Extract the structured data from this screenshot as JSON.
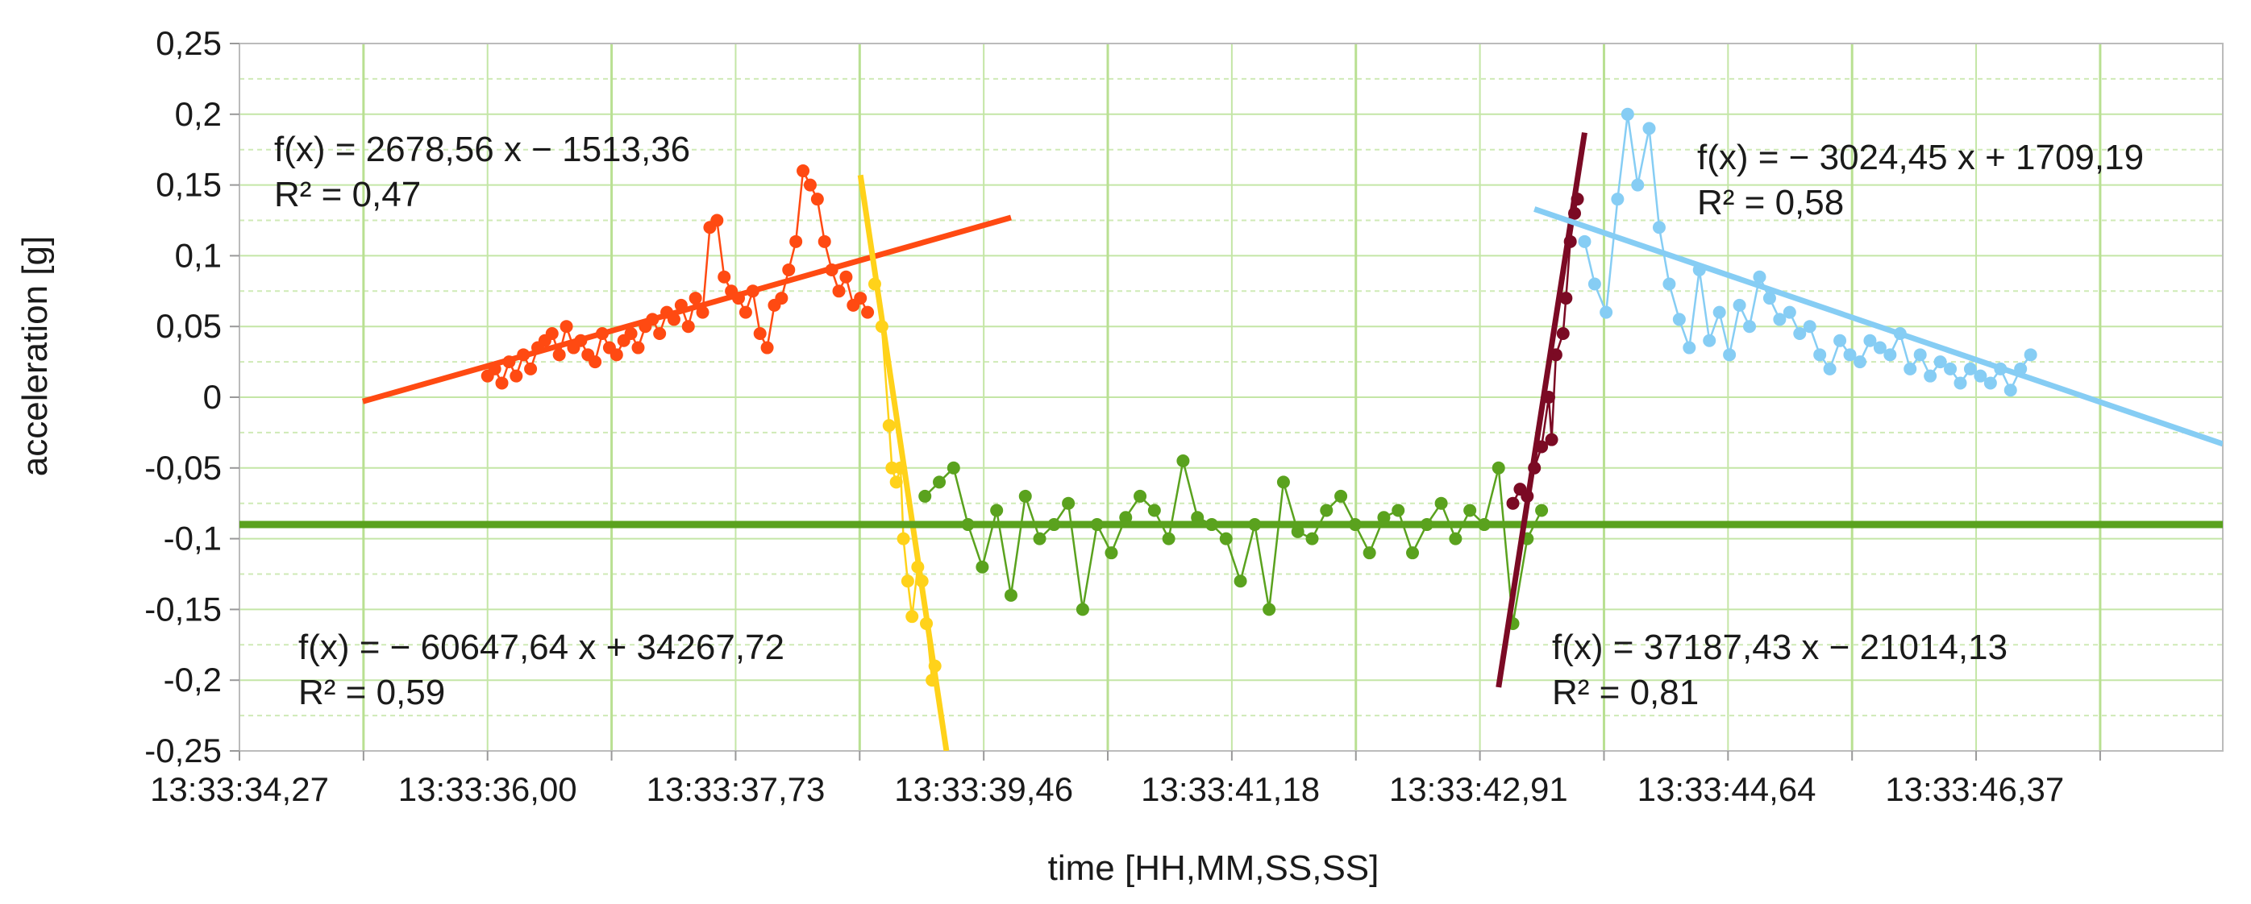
{
  "chart_data": {
    "type": "scatter",
    "xlabel": "time [HH,MM,SS,SS]",
    "ylabel": "acceleration [g]",
    "x_tick_labels": [
      "13:33:34,27",
      "13:33:36,00",
      "13:33:37,73",
      "13:33:39,46",
      "13:33:41,18",
      "13:33:42,91",
      "13:33:44,64",
      "13:33:46,37"
    ],
    "x_tick_values": [
      34.27,
      36.0,
      37.73,
      39.46,
      41.18,
      42.91,
      44.64,
      46.37
    ],
    "xlim": [
      34.27,
      48.1
    ],
    "ylim": [
      -0.25,
      0.25
    ],
    "y_ticks": [
      0.25,
      0.2,
      0.15,
      0.1,
      0.05,
      0,
      -0.05,
      -0.1,
      -0.15,
      -0.2,
      -0.25
    ],
    "y_tick_labels": [
      "0,25",
      "0,2",
      "0,15",
      "0,1",
      "0,05",
      "0",
      "-0,05",
      "-0,1",
      "-0,15",
      "-0,2",
      "-0,25"
    ],
    "grid": true,
    "legend": "none",
    "series": [
      {
        "color": "#ff4a12",
        "trend_x": [
          35.13,
          39.65
        ],
        "trend_y": [
          -0.003,
          0.127
        ],
        "equation": "f(x) = 2678,56 x − 1513,36",
        "r2": "R² = 0,47",
        "x": [
          36.0,
          36.05,
          36.1,
          36.15,
          36.2,
          36.25,
          36.3,
          36.35,
          36.4,
          36.45,
          36.5,
          36.55,
          36.6,
          36.65,
          36.7,
          36.75,
          36.8,
          36.85,
          36.9,
          36.95,
          37.0,
          37.05,
          37.1,
          37.15,
          37.2,
          37.25,
          37.3,
          37.35,
          37.4,
          37.45,
          37.5,
          37.55,
          37.6,
          37.65,
          37.7,
          37.75,
          37.8,
          37.85,
          37.9,
          37.95,
          38.0,
          38.05,
          38.1,
          38.15,
          38.2,
          38.25,
          38.3,
          38.35,
          38.4,
          38.45,
          38.5,
          38.55,
          38.6,
          38.65
        ],
        "y": [
          0.015,
          0.02,
          0.01,
          0.025,
          0.015,
          0.03,
          0.02,
          0.035,
          0.04,
          0.045,
          0.03,
          0.05,
          0.035,
          0.04,
          0.03,
          0.025,
          0.045,
          0.035,
          0.03,
          0.04,
          0.045,
          0.035,
          0.05,
          0.055,
          0.045,
          0.06,
          0.055,
          0.065,
          0.05,
          0.07,
          0.06,
          0.12,
          0.125,
          0.085,
          0.075,
          0.07,
          0.06,
          0.075,
          0.045,
          0.035,
          0.065,
          0.07,
          0.09,
          0.11,
          0.16,
          0.15,
          0.14,
          0.11,
          0.09,
          0.075,
          0.085,
          0.065,
          0.07,
          0.06
        ]
      },
      {
        "color": "#ffd21a",
        "trend_x": [
          38.6,
          39.2
        ],
        "trend_y": [
          0.157,
          -0.25
        ],
        "equation": "f(x) = − 60647,64 x + 34267,72",
        "r2": "R² = 0,59",
        "x": [
          38.7,
          38.75,
          38.8,
          38.82,
          38.85,
          38.88,
          38.9,
          38.93,
          38.96,
          39.0,
          39.03,
          39.06,
          39.1,
          39.12
        ],
        "y": [
          0.08,
          0.05,
          -0.02,
          -0.05,
          -0.06,
          -0.05,
          -0.1,
          -0.13,
          -0.155,
          -0.12,
          -0.13,
          -0.16,
          -0.2,
          -0.19
        ]
      },
      {
        "color": "#5aa21e",
        "trend_x": [
          34.27,
          48.1
        ],
        "trend_y": [
          -0.09,
          -0.09
        ],
        "equation": "",
        "r2": "",
        "x": [
          39.05,
          39.15,
          39.25,
          39.35,
          39.45,
          39.55,
          39.65,
          39.75,
          39.85,
          39.95,
          40.05,
          40.15,
          40.25,
          40.35,
          40.45,
          40.55,
          40.65,
          40.75,
          40.85,
          40.95,
          41.05,
          41.15,
          41.25,
          41.35,
          41.45,
          41.55,
          41.65,
          41.75,
          41.85,
          41.95,
          42.05,
          42.15,
          42.25,
          42.35,
          42.45,
          42.55,
          42.65,
          42.75,
          42.85,
          42.95,
          43.05,
          43.15,
          43.25,
          43.35
        ],
        "y": [
          -0.07,
          -0.06,
          -0.05,
          -0.09,
          -0.12,
          -0.08,
          -0.14,
          -0.07,
          -0.1,
          -0.09,
          -0.075,
          -0.15,
          -0.09,
          -0.11,
          -0.085,
          -0.07,
          -0.08,
          -0.1,
          -0.045,
          -0.085,
          -0.09,
          -0.1,
          -0.13,
          -0.09,
          -0.15,
          -0.06,
          -0.095,
          -0.1,
          -0.08,
          -0.07,
          -0.09,
          -0.11,
          -0.085,
          -0.08,
          -0.11,
          -0.09,
          -0.075,
          -0.1,
          -0.08,
          -0.09,
          -0.05,
          -0.16,
          -0.1,
          -0.08
        ]
      },
      {
        "color": "#7b0a24",
        "trend_x": [
          43.05,
          43.65
        ],
        "trend_y": [
          -0.205,
          0.187
        ],
        "equation": "f(x) = 37187,43 x − 21014,13",
        "r2": "R² = 0,81",
        "x": [
          43.15,
          43.2,
          43.25,
          43.3,
          43.35,
          43.4,
          43.42,
          43.45,
          43.5,
          43.52,
          43.55,
          43.58,
          43.6
        ],
        "y": [
          -0.075,
          -0.065,
          -0.07,
          -0.05,
          -0.035,
          0.0,
          -0.03,
          0.03,
          0.045,
          0.07,
          0.11,
          0.13,
          0.14
        ]
      },
      {
        "color": "#86cdf4",
        "trend_x": [
          43.3,
          48.1
        ],
        "trend_y": [
          0.133,
          -0.033
        ],
        "equation": "f(x) = − 3024,45 x + 1709,19",
        "r2": "R² = 0,58",
        "x": [
          43.65,
          43.72,
          43.8,
          43.88,
          43.95,
          44.02,
          44.1,
          44.17,
          44.24,
          44.31,
          44.38,
          44.45,
          44.52,
          44.59,
          44.66,
          44.73,
          44.8,
          44.87,
          44.94,
          45.01,
          45.08,
          45.15,
          45.22,
          45.29,
          45.36,
          45.43,
          45.5,
          45.57,
          45.64,
          45.71,
          45.78,
          45.85,
          45.92,
          45.99,
          46.06,
          46.13,
          46.2,
          46.27,
          46.34,
          46.41,
          46.48,
          46.55,
          46.62,
          46.69,
          46.76
        ],
        "y": [
          0.11,
          0.08,
          0.06,
          0.14,
          0.2,
          0.15,
          0.19,
          0.12,
          0.08,
          0.055,
          0.035,
          0.09,
          0.04,
          0.06,
          0.03,
          0.065,
          0.05,
          0.085,
          0.07,
          0.055,
          0.06,
          0.045,
          0.05,
          0.03,
          0.02,
          0.04,
          0.03,
          0.025,
          0.04,
          0.035,
          0.03,
          0.045,
          0.02,
          0.03,
          0.015,
          0.025,
          0.02,
          0.01,
          0.02,
          0.015,
          0.01,
          0.02,
          0.005,
          0.02,
          0.03
        ]
      }
    ]
  }
}
